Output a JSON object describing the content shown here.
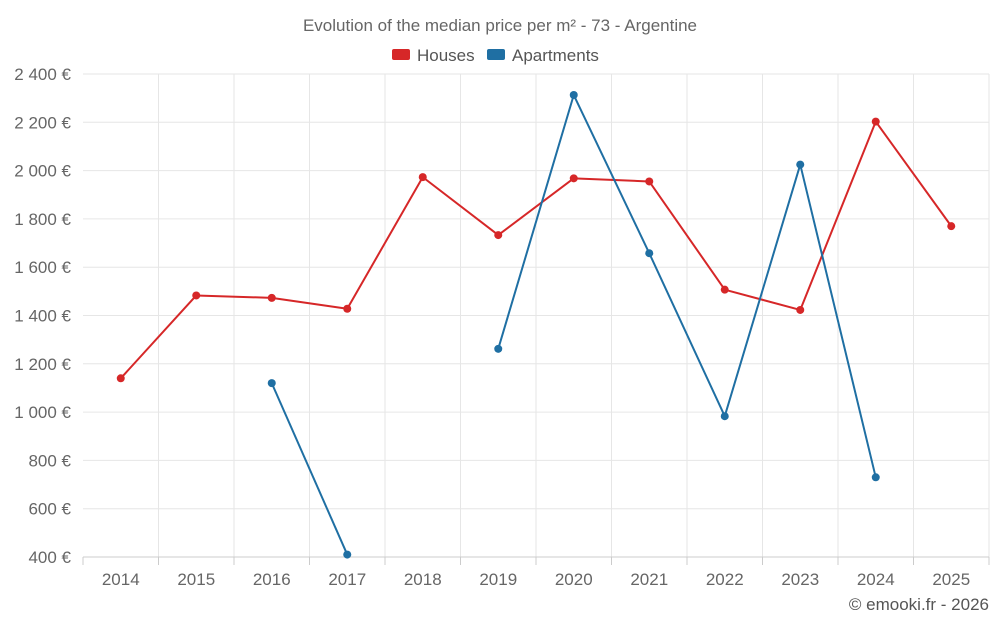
{
  "chart_data": {
    "type": "line",
    "title": "Evolution of the median price per m² - 73 - Argentine",
    "xlabel": "",
    "ylabel": "",
    "x": [
      2014,
      2015,
      2016,
      2017,
      2018,
      2019,
      2020,
      2021,
      2022,
      2023,
      2024,
      2025
    ],
    "ylim": [
      400,
      2400
    ],
    "yticks": [
      400,
      600,
      800,
      1000,
      1200,
      1400,
      1600,
      1800,
      2000,
      2200,
      2400
    ],
    "ytick_labels": [
      "400 €",
      "600 €",
      "800 €",
      "1 000 €",
      "1 200 €",
      "1 400 €",
      "1 600 €",
      "1 800 €",
      "2 000 €",
      "2 200 €",
      "2 400 €"
    ],
    "grid": true,
    "legend": "top-center",
    "series": [
      {
        "name": "Houses",
        "color": "#d62728",
        "values": [
          1140,
          1483,
          1473,
          1428,
          1973,
          1733,
          1968,
          1955,
          1507,
          1423,
          2203,
          1770
        ]
      },
      {
        "name": "Apartments",
        "color": "#1f6fa3",
        "values": [
          null,
          null,
          1120,
          410,
          null,
          1262,
          2313,
          1658,
          983,
          2025,
          730,
          null
        ]
      }
    ]
  },
  "credit": "© emooki.fr - 2026"
}
